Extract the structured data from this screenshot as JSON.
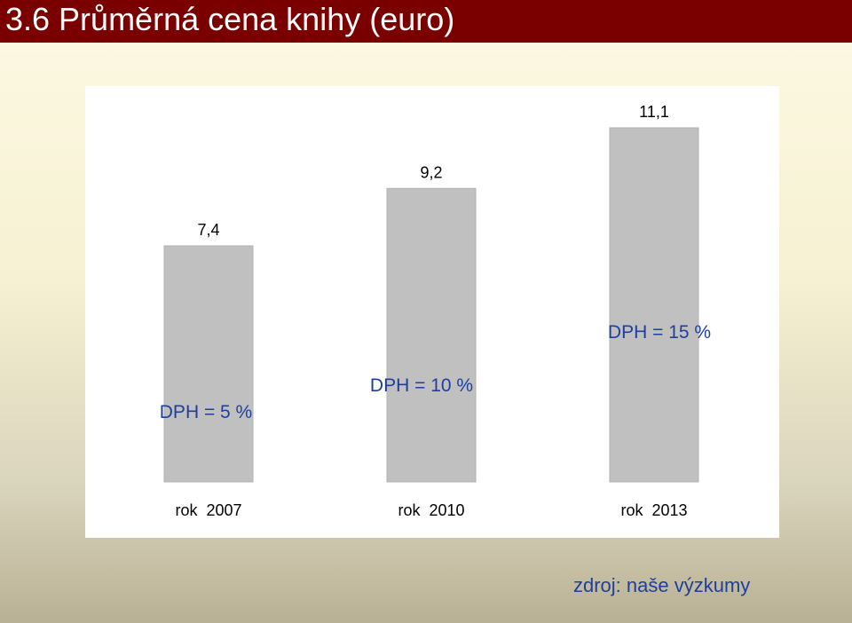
{
  "title": "3.6 Průměrná cena knihy (euro)",
  "source": "zdroj: naše výzkumy",
  "colors": {
    "title_bar": "#7a0000",
    "title_text": "#ffffff",
    "bar_fill": "#c0c0c0",
    "source_text": "#1f3f9c"
  },
  "chart_data": {
    "type": "bar",
    "title": "",
    "xlabel": "",
    "ylabel": "",
    "categories": [
      "rok  2007",
      "rok  2010",
      "rok  2013"
    ],
    "values": [
      7.4,
      9.2,
      11.1
    ],
    "data_labels": [
      "7,4",
      "9,2",
      "11,1"
    ],
    "annotations": [
      "DPH = 5 %",
      "DPH = 10 %",
      "DPH = 15 %"
    ],
    "ylim": [
      0,
      11.1
    ],
    "grid": false,
    "legend": "none"
  }
}
